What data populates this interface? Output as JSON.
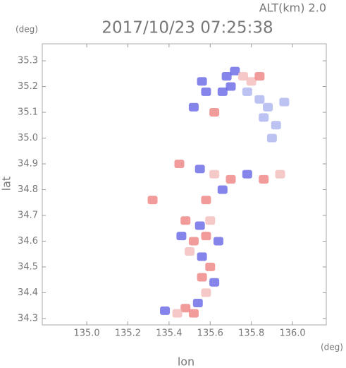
{
  "chart_data": {
    "type": "scatter",
    "altitude": "ALT(km) 2.0",
    "title": "2017/10/23 07:25:38",
    "y_unit": "(deg)",
    "x_unit": "(deg)",
    "ylabel": "lat",
    "xlabel": "lon",
    "xlim": [
      134.784,
      136.164
    ],
    "ylim": [
      34.275,
      35.366
    ],
    "xticks": [
      {
        "value": 135,
        "label": "135.0"
      },
      135.2,
      135.4,
      135.6,
      135.8,
      {
        "value": 136,
        "label": "136.0"
      }
    ],
    "yticks": [
      34.3,
      34.4,
      34.5,
      34.6,
      34.7,
      34.8,
      34.9,
      {
        "value": 35,
        "label": "35.0"
      },
      35.1,
      35.2,
      35.3
    ],
    "points": [
      {
        "x": 135.68,
        "y": 35.24,
        "color": "#6f6fe8"
      },
      {
        "x": 135.72,
        "y": 35.26,
        "color": "#6f6fe8"
      },
      {
        "x": 135.7,
        "y": 35.2,
        "color": "#6f6fe8"
      },
      {
        "x": 135.66,
        "y": 35.18,
        "color": "#6f6fe8"
      },
      {
        "x": 135.76,
        "y": 35.24,
        "color": "#f5c0c0"
      },
      {
        "x": 135.8,
        "y": 35.22,
        "color": "#f5c0c0"
      },
      {
        "x": 135.78,
        "y": 35.18,
        "color": "#b0b8f0"
      },
      {
        "x": 135.84,
        "y": 35.15,
        "color": "#b0b8f0"
      },
      {
        "x": 135.88,
        "y": 35.12,
        "color": "#b0b8f0"
      },
      {
        "x": 135.86,
        "y": 35.08,
        "color": "#b0b8f0"
      },
      {
        "x": 135.92,
        "y": 35.05,
        "color": "#b0b8f0"
      },
      {
        "x": 135.9,
        "y": 35.0,
        "color": "#b0b8f0"
      },
      {
        "x": 135.96,
        "y": 35.14,
        "color": "#b0b8f0"
      },
      {
        "x": 135.58,
        "y": 35.18,
        "color": "#6f6fe8"
      },
      {
        "x": 135.52,
        "y": 35.12,
        "color": "#6f6fe8"
      },
      {
        "x": 135.56,
        "y": 35.22,
        "color": "#6f6fe8"
      },
      {
        "x": 135.62,
        "y": 35.1,
        "color": "#f08a8a"
      },
      {
        "x": 135.84,
        "y": 35.24,
        "color": "#f08a8a"
      },
      {
        "x": 135.45,
        "y": 34.9,
        "color": "#f08a8a"
      },
      {
        "x": 135.55,
        "y": 34.88,
        "color": "#6f6fe8"
      },
      {
        "x": 135.62,
        "y": 34.86,
        "color": "#f5c0c0"
      },
      {
        "x": 135.7,
        "y": 34.84,
        "color": "#f08a8a"
      },
      {
        "x": 135.78,
        "y": 34.86,
        "color": "#6f6fe8"
      },
      {
        "x": 135.86,
        "y": 34.84,
        "color": "#f08a8a"
      },
      {
        "x": 135.94,
        "y": 34.86,
        "color": "#f5c0c0"
      },
      {
        "x": 135.66,
        "y": 34.8,
        "color": "#6f6fe8"
      },
      {
        "x": 135.58,
        "y": 34.76,
        "color": "#f08a8a"
      },
      {
        "x": 135.32,
        "y": 34.76,
        "color": "#f08a8a"
      },
      {
        "x": 135.48,
        "y": 34.68,
        "color": "#f08a8a"
      },
      {
        "x": 135.55,
        "y": 34.66,
        "color": "#6f6fe8"
      },
      {
        "x": 135.6,
        "y": 34.68,
        "color": "#f5c0c0"
      },
      {
        "x": 135.46,
        "y": 34.62,
        "color": "#6f6fe8"
      },
      {
        "x": 135.52,
        "y": 34.6,
        "color": "#f08a8a"
      },
      {
        "x": 135.58,
        "y": 34.62,
        "color": "#f08a8a"
      },
      {
        "x": 135.64,
        "y": 34.6,
        "color": "#6f6fe8"
      },
      {
        "x": 135.5,
        "y": 34.56,
        "color": "#f5c0c0"
      },
      {
        "x": 135.56,
        "y": 34.54,
        "color": "#6f6fe8"
      },
      {
        "x": 135.6,
        "y": 34.5,
        "color": "#f08a8a"
      },
      {
        "x": 135.56,
        "y": 34.46,
        "color": "#f08a8a"
      },
      {
        "x": 135.62,
        "y": 34.44,
        "color": "#6f6fe8"
      },
      {
        "x": 135.58,
        "y": 34.4,
        "color": "#f5c0c0"
      },
      {
        "x": 135.54,
        "y": 34.36,
        "color": "#6f6fe8"
      },
      {
        "x": 135.48,
        "y": 34.34,
        "color": "#f08a8a"
      },
      {
        "x": 135.38,
        "y": 34.33,
        "color": "#6f6fe8"
      },
      {
        "x": 135.44,
        "y": 34.32,
        "color": "#f5c0c0"
      },
      {
        "x": 135.52,
        "y": 34.32,
        "color": "#f08a8a"
      }
    ]
  }
}
